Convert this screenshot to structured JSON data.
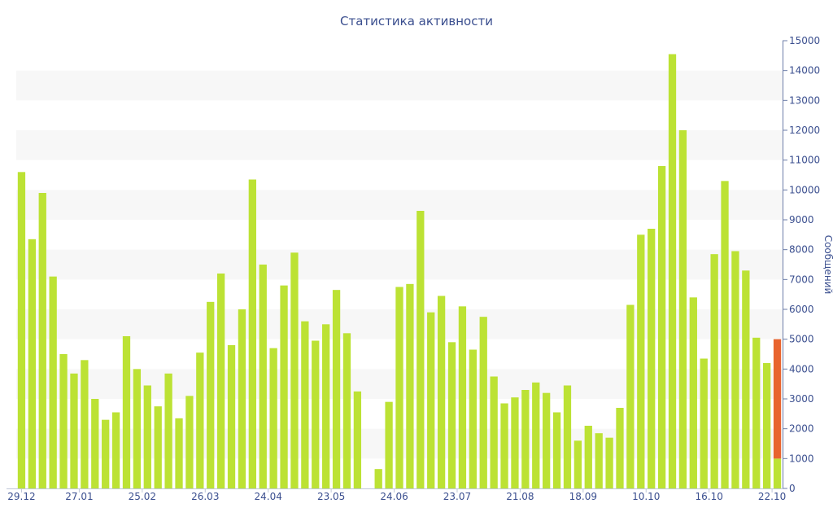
{
  "chart_data": {
    "type": "bar",
    "title": "Статистика активности",
    "ylabel": "Сообщений",
    "xlabel": "",
    "ylim": [
      0,
      15000
    ],
    "y_ticks": [
      0,
      1000,
      2000,
      3000,
      4000,
      5000,
      6000,
      7000,
      8000,
      9000,
      10000,
      11000,
      12000,
      13000,
      14000,
      15000
    ],
    "y_axis_side": "right",
    "grid": "alternating horizontal bands",
    "x_tick_labels": [
      "29.12",
      "27.01",
      "25.02",
      "26.03",
      "24.04",
      "23.05",
      "24.06",
      "23.07",
      "21.08",
      "18.09",
      "10.10",
      "16.10",
      "22.10"
    ],
    "x_tick_bar_index": [
      0,
      5.5,
      11.5,
      17.5,
      23.5,
      29.5,
      35.5,
      41.5,
      47.5,
      53.5,
      59.5,
      65.5,
      71.5
    ],
    "bar_count": 73,
    "colors": {
      "bar": "#bce234",
      "highlight": "#e8642e",
      "text": "#3b4f8f",
      "band": "#f7f7f7"
    },
    "series": [
      {
        "values": [
          10600,
          8350,
          9900,
          7100,
          4500,
          3850,
          4300,
          3000,
          2300,
          2550,
          5100,
          4000,
          3450,
          2750,
          3850,
          2350,
          3100,
          4550,
          6250,
          7200,
          4800,
          6000,
          10350,
          7500,
          4700,
          6800,
          7900,
          5600,
          4950,
          5500,
          6650,
          5200,
          3250,
          0,
          650,
          2900,
          6750,
          6850,
          9300,
          5900,
          6450,
          4900,
          6100,
          4650,
          5750,
          3750,
          2850,
          3050,
          3300,
          3550,
          3200,
          2550,
          3450,
          1600,
          2100,
          1850,
          1700,
          2700,
          6150,
          8500,
          8700,
          10800,
          14550,
          12000,
          6400,
          4350,
          7850,
          10300,
          7950,
          7300,
          5050,
          4200,
          1000
        ]
      },
      {
        "values": [
          0,
          0,
          0,
          0,
          0,
          0,
          0,
          0,
          0,
          0,
          0,
          0,
          0,
          0,
          0,
          0,
          0,
          0,
          0,
          0,
          0,
          0,
          0,
          0,
          0,
          0,
          0,
          0,
          0,
          0,
          0,
          0,
          0,
          0,
          0,
          0,
          0,
          0,
          0,
          0,
          0,
          0,
          0,
          0,
          0,
          0,
          0,
          0,
          0,
          0,
          0,
          0,
          0,
          0,
          0,
          0,
          0,
          0,
          0,
          0,
          0,
          0,
          0,
          0,
          0,
          0,
          0,
          0,
          0,
          0,
          0,
          0,
          4000
        ]
      }
    ]
  }
}
